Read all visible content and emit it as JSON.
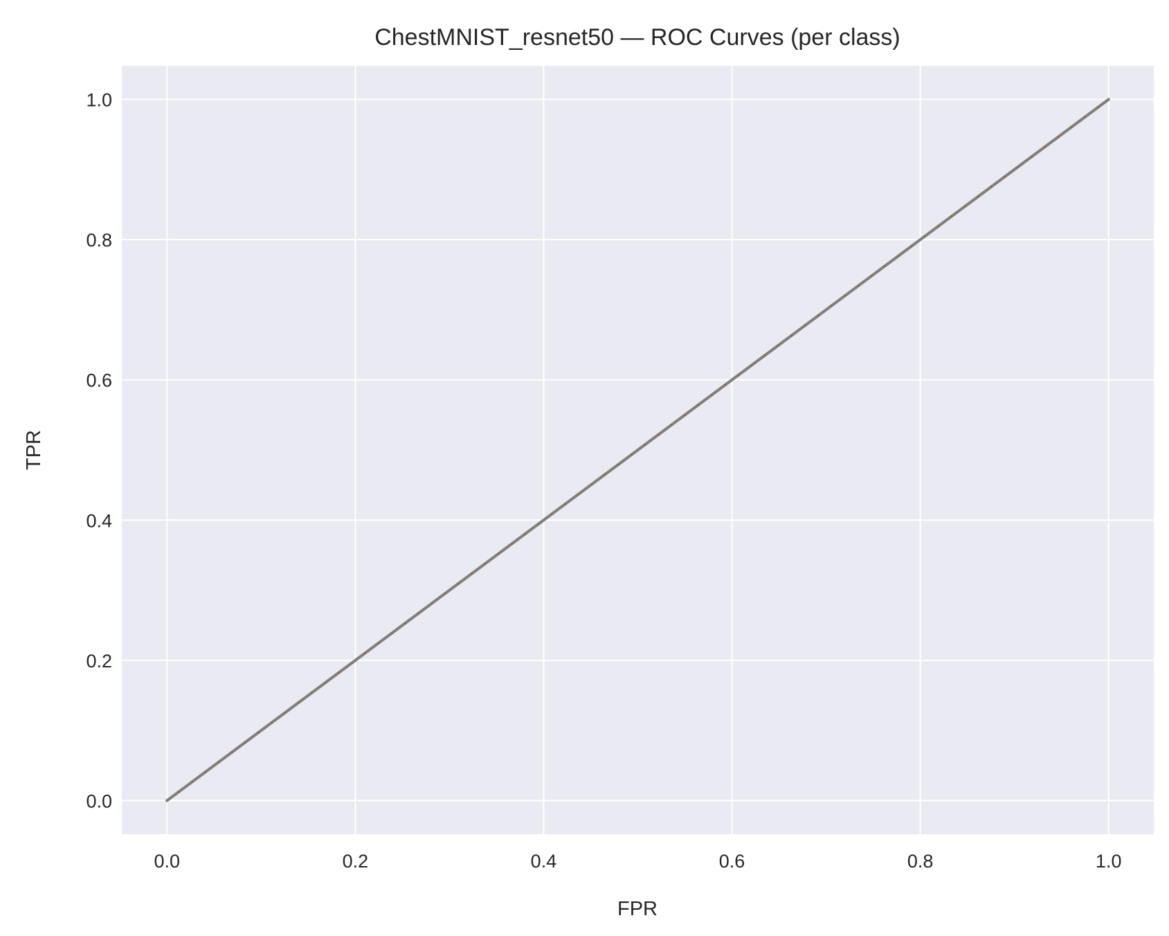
{
  "chart_data": {
    "type": "line",
    "title": "ChestMNIST_resnet50 — ROC Curves (per class)",
    "xlabel": "FPR",
    "ylabel": "TPR",
    "xlim": [
      -0.048,
      1.048
    ],
    "ylim": [
      -0.048,
      1.048
    ],
    "xticks": [
      "0.0",
      "0.2",
      "0.4",
      "0.6",
      "0.8",
      "1.0"
    ],
    "yticks": [
      "0.0",
      "0.2",
      "0.4",
      "0.6",
      "0.8",
      "1.0"
    ],
    "grid": true,
    "legend": "none",
    "background_color": "#eaeaf2",
    "grid_color": "#ffffff",
    "series": [
      {
        "x": [
          0,
          1
        ],
        "y": [
          0,
          1
        ],
        "color": "#8c6d46",
        "style": "solid"
      },
      {
        "x": [
          0,
          1
        ],
        "y": [
          0,
          1
        ],
        "color": "#808080",
        "style": "dashed"
      }
    ]
  }
}
